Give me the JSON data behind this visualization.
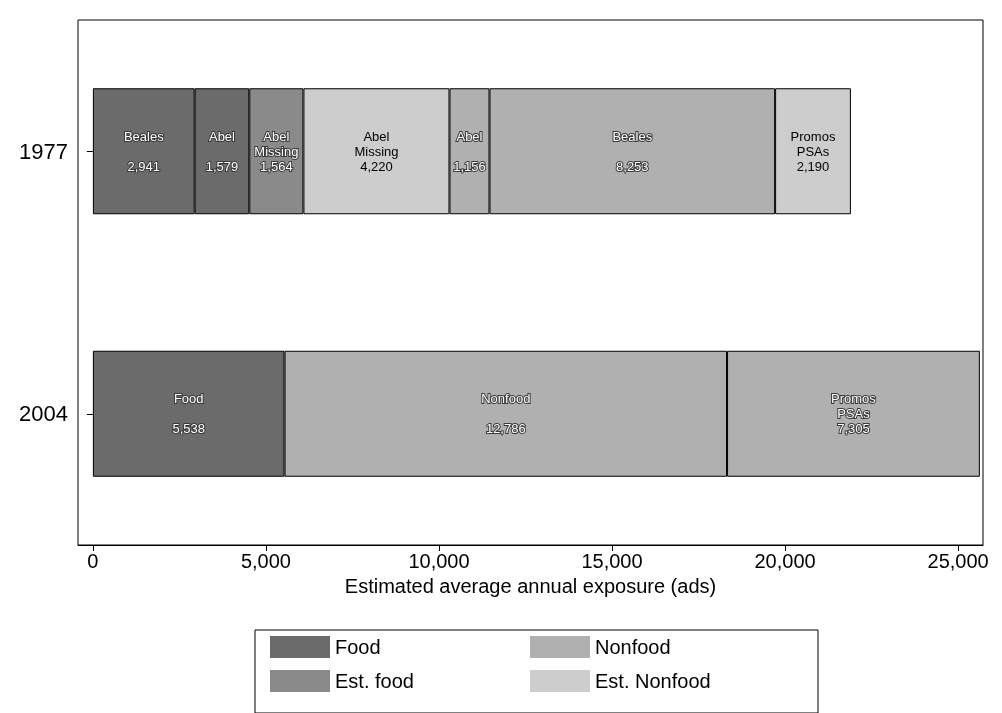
{
  "chart_data": {
    "type": "bar",
    "orientation": "horizontal",
    "stacked": true,
    "categories": [
      "1977",
      "2004"
    ],
    "xlabel": "Estimated average annual exposure (ads)",
    "xlim": [
      -430,
      25720
    ],
    "xticks": [
      0,
      {
        "value": 5000,
        "label": "5,000"
      },
      {
        "value": 10000,
        "label": "10,000"
      },
      {
        "value": 15000,
        "label": "15,000"
      },
      {
        "value": 20000,
        "label": "20,000"
      },
      {
        "value": 25000,
        "label": "25,000"
      }
    ],
    "legend": "bottom",
    "grid": false,
    "series": [
      {
        "name": "Food",
        "color": "#6b6b6b",
        "values": [
          2941,
          5538
        ],
        "value_labels": [
          "Beales\n\n2,941",
          "Food\n\n5,538"
        ]
      },
      {
        "color": "#6b6b6b",
        "values": [
          1579,
          null
        ],
        "value_labels": [
          "Abel\n\n1,579",
          null
        ]
      },
      {
        "name": "Est. food",
        "color": "#8a8a8a",
        "values": [
          1564,
          null
        ],
        "value_labels": [
          "Abel\nMissing\n1,564",
          null
        ]
      },
      {
        "color": "#cdcdcd",
        "values": [
          4220,
          null
        ],
        "value_labels": [
          "Abel\nMissing\n4,220",
          null
        ]
      },
      {
        "name": "Nonfood",
        "color": "#b0b0b0",
        "values": [
          1156,
          12786
        ],
        "value_labels": [
          "Abel\n\n1,156",
          "Nonfood\n\n12,786"
        ]
      },
      {
        "color": "#b0b0b0",
        "values": [
          8253,
          7305
        ],
        "value_labels": [
          "Beales\n\n8,253",
          "Promos\nPSAs\n7,305"
        ]
      },
      {
        "name": "Est. Nonfood",
        "color": "#cdcdcd",
        "values": [
          2190,
          null
        ],
        "value_labels": [
          "Promos\nPSAs\n2,190",
          null
        ]
      }
    ]
  }
}
